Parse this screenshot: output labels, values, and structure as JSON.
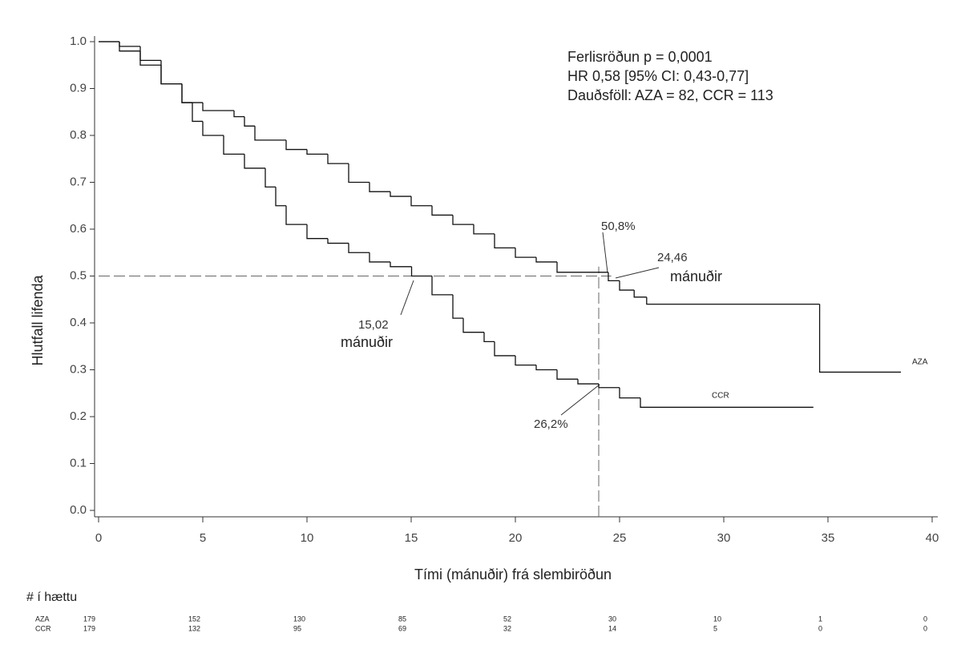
{
  "chart_data": {
    "type": "line",
    "drawstyle": "steps-post",
    "xlabel": "Tími (mánuðir) frá slembiröðun",
    "ylabel": "Hlutfall lifenda",
    "xlim": [
      0,
      40
    ],
    "ylim": [
      0,
      1
    ],
    "xticks": [
      0,
      5,
      10,
      15,
      20,
      25,
      30,
      35,
      40
    ],
    "yticks": [
      {
        "value": 0,
        "label": "0.0"
      },
      0.1,
      0.2,
      0.3,
      0.4,
      0.5,
      0.6,
      0.7,
      0.8,
      0.9,
      {
        "value": 1,
        "label": "1.0"
      }
    ],
    "grid": false,
    "series": [
      {
        "name": "AZA",
        "color": "#111111",
        "x": [
          0,
          1,
          2,
          3,
          4,
          5,
          6.5,
          7,
          7.5,
          9,
          10,
          11,
          12,
          13,
          14,
          15,
          16,
          17,
          18,
          19,
          20,
          21,
          22,
          24.46,
          25,
          25.7,
          26.3,
          34.6,
          38.5
        ],
        "values": [
          1.0,
          0.98,
          0.95,
          0.91,
          0.87,
          0.853,
          0.84,
          0.82,
          0.79,
          0.77,
          0.76,
          0.74,
          0.7,
          0.68,
          0.67,
          0.65,
          0.63,
          0.61,
          0.59,
          0.56,
          0.54,
          0.53,
          0.508,
          0.49,
          0.47,
          0.455,
          0.44,
          0.295,
          0.295
        ]
      },
      {
        "name": "CCR",
        "color": "#111111",
        "x": [
          0,
          1,
          2,
          3,
          4,
          4.5,
          5,
          6,
          7,
          8,
          8.5,
          9,
          10,
          11,
          12,
          13,
          14,
          15.02,
          16,
          17,
          17.5,
          18.5,
          19,
          20,
          21,
          22,
          23,
          24,
          25,
          26,
          34.3
        ],
        "values": [
          1.0,
          0.99,
          0.96,
          0.91,
          0.87,
          0.83,
          0.8,
          0.76,
          0.73,
          0.69,
          0.65,
          0.61,
          0.58,
          0.57,
          0.55,
          0.53,
          0.52,
          0.5,
          0.46,
          0.41,
          0.38,
          0.36,
          0.33,
          0.31,
          0.3,
          0.28,
          0.27,
          0.262,
          0.24,
          0.22,
          0.22
        ]
      }
    ],
    "reference_lines": {
      "y": 0.5,
      "x": 24
    },
    "annotations": [
      "Ferlisröðun p = 0,0001",
      "HR 0,58 [95% CI: 0,43-0,77]",
      "Dauðsföll: AZA = 82, CCR = 113",
      "50,8%",
      "24,46",
      "mánuðir",
      "15,02",
      "mánuðir",
      "26,2%"
    ],
    "risk_table": {
      "title": "# í hættu",
      "rows": [
        {
          "name": "AZA",
          "values": [
            179,
            152,
            130,
            85,
            52,
            30,
            10,
            1,
            0
          ]
        },
        {
          "name": "CCR",
          "values": [
            179,
            132,
            95,
            69,
            32,
            14,
            5,
            0,
            0
          ]
        }
      ]
    }
  }
}
